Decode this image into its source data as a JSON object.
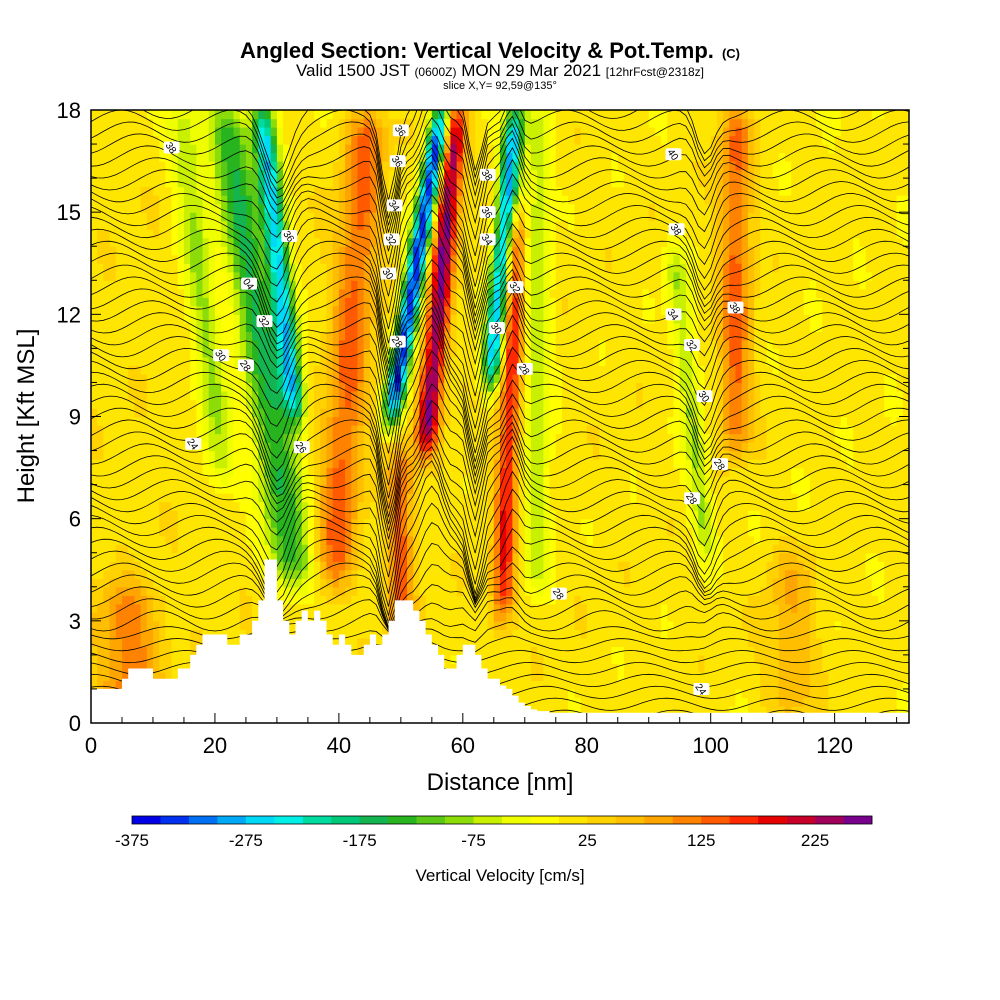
{
  "title": {
    "main": "Angled Section: Vertical Velocity & Pot.Temp.",
    "tag": "(C)",
    "valid_prefix": "Valid 1500 JST",
    "valid_utc": "(0600Z)",
    "valid_date": "MON 29 Mar 2021",
    "forecast": "[12hrFcst@2318z]",
    "slice": "slice X,Y= 92,59@135°"
  },
  "chart_data": {
    "type": "heatmap",
    "title": "Angled Section: Vertical Velocity & Pot.Temp.",
    "xlabel": "Distance [nm]",
    "ylabel": "Height [Kft MSL]",
    "xlim": [
      0,
      132
    ],
    "ylim": [
      0,
      18
    ],
    "x_ticks": [
      0,
      20,
      40,
      60,
      80,
      100,
      120
    ],
    "y_ticks": [
      0,
      3,
      6,
      9,
      12,
      15,
      18
    ],
    "colorbar": {
      "label": "Vertical Velocity [cm/s]",
      "min": -375,
      "max": 275,
      "step": 25,
      "tick_labels": [
        "-375",
        "-275",
        "-175",
        "-75",
        "25",
        "125",
        "225"
      ],
      "colors": [
        "#0000e6",
        "#0030f0",
        "#0070f2",
        "#00a8f5",
        "#00d8f8",
        "#00f0e6",
        "#00dca0",
        "#00c878",
        "#14b450",
        "#28b41e",
        "#5ac814",
        "#8cdc0a",
        "#c8f000",
        "#f0ff00",
        "#ffff00",
        "#ffe600",
        "#ffd200",
        "#ffbe00",
        "#ffa500",
        "#ff8200",
        "#ff5a00",
        "#ff2800",
        "#e60000",
        "#c80028",
        "#a0005a",
        "#78008c"
      ]
    },
    "velocity_features": [
      {
        "x": 0,
        "w": 200,
        "amp": 15,
        "ztop": 18,
        "zbot": 0,
        "tilt": 0
      },
      {
        "x": 6,
        "w": 5,
        "amp": 105,
        "ztop": 4,
        "zbot": 0,
        "tilt": 0
      },
      {
        "x": 20,
        "w": 2.5,
        "amp": -90,
        "ztop": 18,
        "zbot": 7,
        "tilt": -0.6
      },
      {
        "x": 29,
        "w": 3.5,
        "amp": -165,
        "ztop": 18,
        "zbot": 4,
        "tilt": -0.8
      },
      {
        "x": 33,
        "w": 1.8,
        "amp": -270,
        "ztop": 18,
        "zbot": 9,
        "tilt": -0.6
      },
      {
        "x": 41,
        "w": 3.2,
        "amp": 120,
        "ztop": 18,
        "zbot": 4,
        "tilt": 0.4
      },
      {
        "x": 48.5,
        "w": 1.6,
        "amp": -360,
        "ztop": 18,
        "zbot": 9,
        "tilt": 0.9
      },
      {
        "x": 54.5,
        "w": 1.8,
        "amp": 240,
        "ztop": 18,
        "zbot": 8,
        "tilt": 0.5
      },
      {
        "x": 50,
        "w": 2,
        "amp": 120,
        "ztop": 8,
        "zbot": 2,
        "tilt": 0
      },
      {
        "x": 64,
        "w": 1.6,
        "amp": -300,
        "ztop": 18,
        "zbot": 10,
        "tilt": 0.5
      },
      {
        "x": 67.5,
        "w": 1.8,
        "amp": 160,
        "ztop": 15,
        "zbot": 3,
        "tilt": 0.2
      },
      {
        "x": 72,
        "w": 2.2,
        "amp": -80,
        "ztop": 18,
        "zbot": 4,
        "tilt": 0
      },
      {
        "x": 97,
        "w": 1.8,
        "amp": -90,
        "ztop": 14,
        "zbot": 5,
        "tilt": -0.6
      },
      {
        "x": 104,
        "w": 2.5,
        "amp": 120,
        "ztop": 18,
        "zbot": 8,
        "tilt": 0
      },
      {
        "x": 113,
        "w": 4,
        "amp": 60,
        "ztop": 5,
        "zbot": 0,
        "tilt": 0
      }
    ],
    "terrain": {
      "x": [
        0,
        2.5,
        5,
        6,
        8,
        10,
        12,
        14,
        16,
        17,
        18,
        20,
        22,
        24,
        26,
        27,
        28,
        29,
        30,
        31,
        32,
        33,
        34,
        35,
        36,
        37,
        38,
        39,
        40,
        41,
        42,
        43,
        44,
        45,
        46,
        47,
        48,
        49,
        50,
        51,
        52,
        53,
        54,
        55,
        56,
        57,
        58,
        59,
        60,
        61,
        62,
        63,
        64,
        65,
        66,
        67,
        68,
        69,
        70,
        71,
        72,
        74,
        76,
        78,
        80,
        85,
        90,
        95,
        100,
        110,
        120,
        126,
        132
      ],
      "height": [
        1.0,
        1.0,
        1.3,
        1.6,
        1.6,
        1.3,
        1.3,
        1.6,
        2.0,
        2.3,
        2.6,
        2.6,
        2.3,
        2.6,
        3.0,
        3.6,
        4.8,
        4.8,
        3.6,
        3.0,
        2.6,
        3.0,
        3.3,
        3.0,
        3.3,
        3.0,
        2.6,
        2.3,
        2.6,
        2.3,
        2.0,
        2.0,
        2.3,
        2.6,
        2.3,
        2.6,
        3.0,
        3.6,
        3.6,
        3.6,
        3.3,
        3.0,
        2.6,
        2.3,
        2.0,
        1.6,
        1.6,
        2.0,
        2.3,
        2.3,
        2.0,
        1.6,
        1.3,
        1.3,
        1.1,
        1.0,
        0.8,
        0.6,
        0.5,
        0.4,
        0.35,
        0.3,
        0.3,
        0.3,
        0.3,
        0.3,
        0.3,
        0.3,
        0.3,
        0.3,
        0.3,
        0.3,
        0.3
      ]
    },
    "contour_labels": [
      {
        "text": "38",
        "x": 13,
        "y": 16.9
      },
      {
        "text": "36",
        "x": 32,
        "y": 14.3
      },
      {
        "text": "04",
        "x": 25.5,
        "y": 12.9
      },
      {
        "text": "32",
        "x": 28,
        "y": 11.8
      },
      {
        "text": "30",
        "x": 21,
        "y": 10.8
      },
      {
        "text": "28",
        "x": 25,
        "y": 10.5
      },
      {
        "text": "24",
        "x": 16.5,
        "y": 8.2
      },
      {
        "text": "26",
        "x": 34,
        "y": 8.1
      },
      {
        "text": "36",
        "x": 50,
        "y": 17.4
      },
      {
        "text": "36",
        "x": 49.5,
        "y": 16.5
      },
      {
        "text": "34",
        "x": 49,
        "y": 15.2
      },
      {
        "text": "32",
        "x": 48.5,
        "y": 14.2
      },
      {
        "text": "30",
        "x": 48,
        "y": 13.2
      },
      {
        "text": "28",
        "x": 49.5,
        "y": 11.2
      },
      {
        "text": "38",
        "x": 64,
        "y": 16.1
      },
      {
        "text": "36",
        "x": 64,
        "y": 15.0
      },
      {
        "text": "34",
        "x": 64,
        "y": 14.2
      },
      {
        "text": "32",
        "x": 68.5,
        "y": 12.8
      },
      {
        "text": "30",
        "x": 65.5,
        "y": 11.6
      },
      {
        "text": "28",
        "x": 70,
        "y": 10.4
      },
      {
        "text": "40",
        "x": 94,
        "y": 16.7
      },
      {
        "text": "38",
        "x": 94.5,
        "y": 14.5
      },
      {
        "text": "34",
        "x": 94,
        "y": 12.0
      },
      {
        "text": "32",
        "x": 97,
        "y": 11.1
      },
      {
        "text": "38",
        "x": 104,
        "y": 12.2
      },
      {
        "text": "30",
        "x": 99,
        "y": 9.6
      },
      {
        "text": "28",
        "x": 101.5,
        "y": 7.6
      },
      {
        "text": "28",
        "x": 97,
        "y": 6.6
      },
      {
        "text": "28",
        "x": 75.5,
        "y": 3.8
      },
      {
        "text": "24",
        "x": 98.5,
        "y": 1.0
      }
    ]
  }
}
